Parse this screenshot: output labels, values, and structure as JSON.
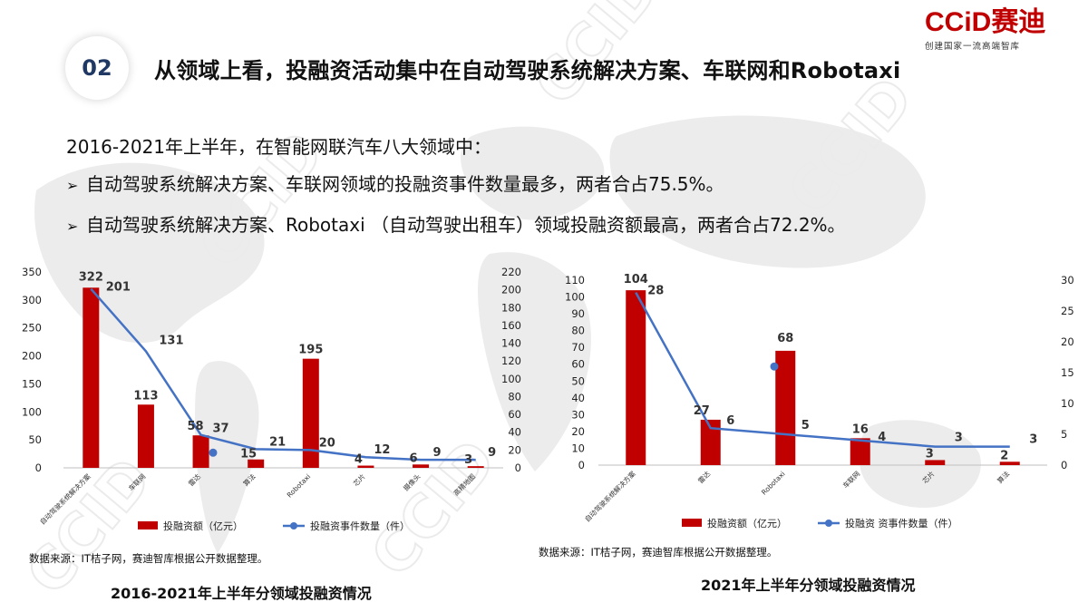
{
  "header": {
    "section_number": "02",
    "headline": "从领域上看，投融资活动集中在自动驾驶系统解决方案、车联网和Robotaxi"
  },
  "logo": {
    "brand": "CCiD赛迪",
    "tagline": "创建国家一流高端智库"
  },
  "summary": {
    "intro": "2016-2021年上半年，在智能网联汽车八大领域中：",
    "bullets": [
      "自动驾驶系统解决方案、车联网领域的投融资事件数量最多，两者合占75.5%。",
      "自动驾驶系统解决方案、Robotaxi （自动驾驶出租车）领域投融资额最高，两者合占72.2%。"
    ],
    "bullet_marker": "➢"
  },
  "watermark": {
    "text": "CCID"
  },
  "colors": {
    "bar": "#c00000",
    "line": "#4472c4",
    "accent": "#c00000",
    "badge_text": "#1f3864"
  },
  "left_panel": {
    "source": "数据来源：IT桔子网，赛迪智库根据公开数据整理。",
    "caption": "2016-2021年上半年分领域投融资情况"
  },
  "right_panel": {
    "source": "数据来源：IT桔子网，赛迪智库根据公开数据整理。",
    "caption": "2021年上半年分领域投融资情况"
  },
  "chart_data": [
    {
      "type": "bar",
      "combo": "bar + line (dual axis)",
      "categories": [
        "自动驾驶系统解决方案",
        "车联网",
        "雷达",
        "算法",
        "Robotaxi",
        "芯片",
        "摄像头",
        "高精地图"
      ],
      "series": [
        {
          "name": "投融资额（亿元）",
          "type": "bar",
          "axis": "left",
          "values": [
            322,
            113,
            58,
            15,
            195,
            4,
            6,
            3
          ]
        },
        {
          "name": "投融资事件数量（件）",
          "type": "line",
          "axis": "right",
          "values": [
            201,
            131,
            37,
            21,
            20,
            12,
            9,
            9
          ]
        }
      ],
      "y_left": {
        "range": [
          0,
          350
        ],
        "ticks": [
          0,
          50,
          100,
          150,
          200,
          250,
          300,
          350
        ]
      },
      "y_right": {
        "range": [
          0,
          220
        ],
        "ticks": [
          0,
          20,
          40,
          60,
          80,
          100,
          120,
          140,
          160,
          180,
          200,
          220
        ]
      },
      "legend_position": "bottom",
      "grid": false,
      "stray_marker_value": 17
    },
    {
      "type": "bar",
      "combo": "bar + line (dual axis)",
      "categories": [
        "自动驾驶系统解决方案",
        "雷达",
        "Robotaxi",
        "车联网",
        "芯片",
        "算法"
      ],
      "series": [
        {
          "name": "投融资额（亿元）",
          "type": "bar",
          "axis": "left",
          "values": [
            104,
            27,
            68,
            16,
            3,
            2
          ]
        },
        {
          "name": "投融资 资事件数量（件）",
          "type": "line",
          "axis": "right",
          "values": [
            28,
            6,
            5,
            4,
            3,
            3
          ]
        }
      ],
      "y_left": {
        "range": [
          0,
          110
        ],
        "ticks": [
          0,
          10,
          20,
          30,
          40,
          50,
          60,
          70,
          80,
          90,
          100,
          110
        ]
      },
      "y_right": {
        "range": [
          0,
          30
        ],
        "ticks": [
          0,
          5,
          10,
          15,
          20,
          25,
          30
        ]
      },
      "legend_position": "bottom",
      "grid": false,
      "stray_marker_value": 16
    }
  ]
}
